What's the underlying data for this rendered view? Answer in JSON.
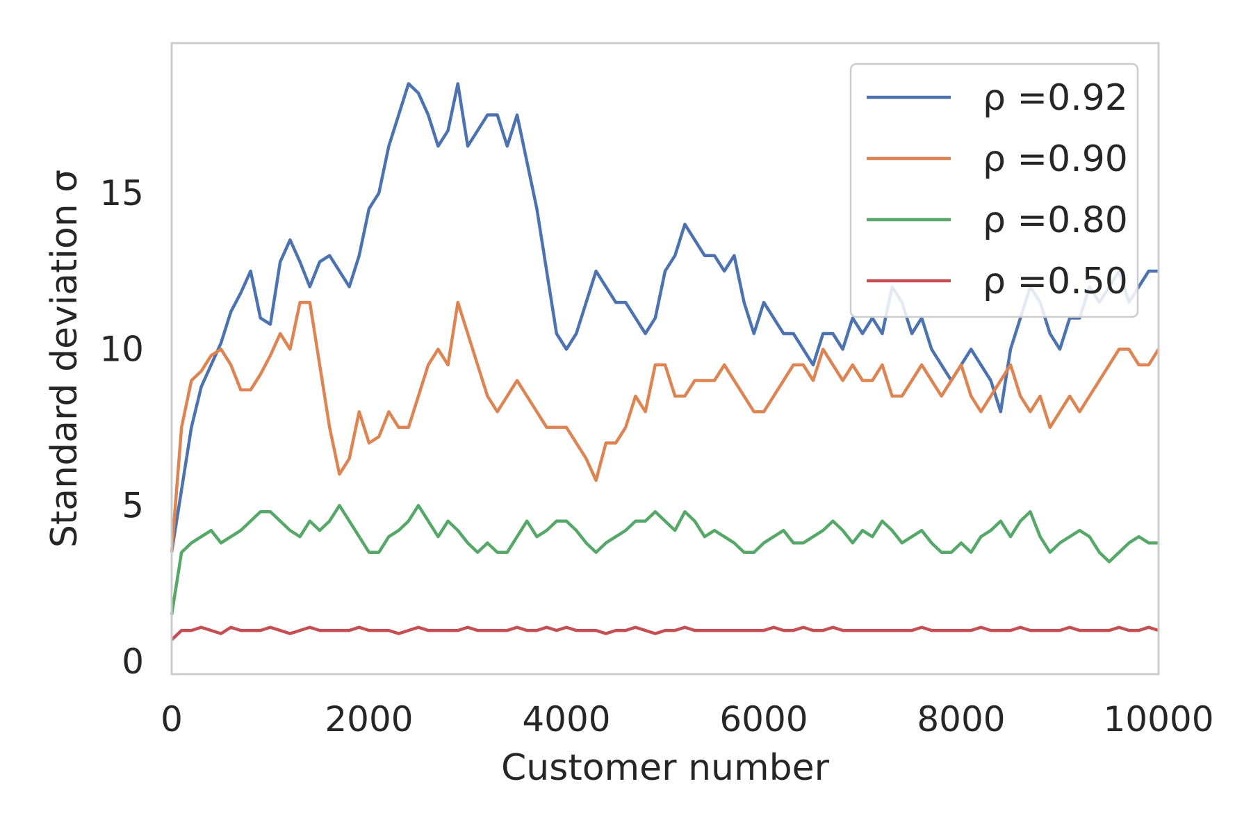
{
  "chart_data": {
    "type": "line",
    "title": "",
    "xlabel": "Customer number",
    "ylabel": "Standard deviation σ",
    "xlim": [
      0,
      10000
    ],
    "ylim": [
      -0.4,
      19.8
    ],
    "xticks": [
      0,
      2000,
      4000,
      6000,
      8000,
      10000
    ],
    "yticks": [
      0,
      5,
      10,
      15
    ],
    "grid": false,
    "legend_position": "top-right",
    "series": [
      {
        "name": "ρ =0.92",
        "color": "#4c72b0",
        "x": [
          0,
          100,
          200,
          300,
          400,
          500,
          600,
          700,
          800,
          900,
          1000,
          1100,
          1200,
          1300,
          1400,
          1500,
          1600,
          1700,
          1800,
          1900,
          2000,
          2100,
          2200,
          2300,
          2400,
          2500,
          2600,
          2700,
          2800,
          2900,
          3000,
          3100,
          3200,
          3300,
          3400,
          3500,
          3600,
          3700,
          3800,
          3900,
          4000,
          4100,
          4200,
          4300,
          4400,
          4500,
          4600,
          4700,
          4800,
          4900,
          5000,
          5100,
          5200,
          5300,
          5400,
          5500,
          5600,
          5700,
          5800,
          5900,
          6000,
          6100,
          6200,
          6300,
          6400,
          6500,
          6600,
          6700,
          6800,
          6900,
          7000,
          7100,
          7200,
          7300,
          7400,
          7500,
          7600,
          7700,
          7800,
          7900,
          8000,
          8100,
          8200,
          8300,
          8400,
          8500,
          8600,
          8700,
          8800,
          8900,
          9000,
          9100,
          9200,
          9300,
          9400,
          9500,
          9600,
          9700,
          9800,
          9900,
          10000
        ],
        "y": [
          3.5,
          5.5,
          7.5,
          8.8,
          9.5,
          10.2,
          11.2,
          11.8,
          12.5,
          11.0,
          10.8,
          12.8,
          13.5,
          12.8,
          12.0,
          12.8,
          13.0,
          12.5,
          12.0,
          13.0,
          14.5,
          15.0,
          16.5,
          17.5,
          18.5,
          18.2,
          17.5,
          16.5,
          17.0,
          18.5,
          16.5,
          17.0,
          17.5,
          17.5,
          16.5,
          17.5,
          16.0,
          14.5,
          12.5,
          10.5,
          10.0,
          10.5,
          11.5,
          12.5,
          12.0,
          11.5,
          11.5,
          11.0,
          10.5,
          11.0,
          12.5,
          13.0,
          14.0,
          13.5,
          13.0,
          13.0,
          12.5,
          13.0,
          11.5,
          10.5,
          11.5,
          11.0,
          10.5,
          10.5,
          10.0,
          9.5,
          10.5,
          10.5,
          10.0,
          11.0,
          10.5,
          11.0,
          10.5,
          12.0,
          11.5,
          10.5,
          11.0,
          10.0,
          9.5,
          9.0,
          9.5,
          10.0,
          9.5,
          9.0,
          8.0,
          10.0,
          11.0,
          12.0,
          11.5,
          10.5,
          10.0,
          11.0,
          11.0,
          12.0,
          11.5,
          12.0,
          12.5,
          11.5,
          12.0,
          12.5,
          12.5
        ]
      },
      {
        "name": "ρ =0.90",
        "color": "#dd8452",
        "x": [
          0,
          100,
          200,
          300,
          400,
          500,
          600,
          700,
          800,
          900,
          1000,
          1100,
          1200,
          1300,
          1400,
          1500,
          1600,
          1700,
          1800,
          1900,
          2000,
          2100,
          2200,
          2300,
          2400,
          2500,
          2600,
          2700,
          2800,
          2900,
          3000,
          3100,
          3200,
          3300,
          3400,
          3500,
          3600,
          3700,
          3800,
          3900,
          4000,
          4100,
          4200,
          4300,
          4400,
          4500,
          4600,
          4700,
          4800,
          4900,
          5000,
          5100,
          5200,
          5300,
          5400,
          5500,
          5600,
          5700,
          5800,
          5900,
          6000,
          6100,
          6200,
          6300,
          6400,
          6500,
          6600,
          6700,
          6800,
          6900,
          7000,
          7100,
          7200,
          7300,
          7400,
          7500,
          7600,
          7700,
          7800,
          7900,
          8000,
          8100,
          8200,
          8300,
          8400,
          8500,
          8600,
          8700,
          8800,
          8900,
          9000,
          9100,
          9200,
          9300,
          9400,
          9500,
          9600,
          9700,
          9800,
          9900,
          10000
        ],
        "y": [
          3.5,
          7.5,
          9.0,
          9.3,
          9.8,
          10.0,
          9.5,
          8.7,
          8.7,
          9.2,
          9.8,
          10.5,
          10.0,
          11.5,
          11.5,
          9.5,
          7.5,
          6.0,
          6.5,
          8.0,
          7.0,
          7.2,
          8.0,
          7.5,
          7.5,
          8.5,
          9.5,
          10.0,
          9.5,
          11.5,
          10.5,
          9.5,
          8.5,
          8.0,
          8.5,
          9.0,
          8.5,
          8.0,
          7.5,
          7.5,
          7.5,
          7.0,
          6.5,
          5.8,
          7.0,
          7.0,
          7.5,
          8.5,
          8.0,
          9.5,
          9.5,
          8.5,
          8.5,
          9.0,
          9.0,
          9.0,
          9.5,
          9.0,
          8.5,
          8.0,
          8.0,
          8.5,
          9.0,
          9.5,
          9.5,
          9.0,
          10.0,
          9.5,
          9.0,
          9.5,
          9.0,
          9.0,
          9.5,
          8.5,
          8.5,
          9.0,
          9.5,
          9.0,
          8.5,
          9.0,
          9.5,
          8.5,
          8.0,
          8.5,
          9.0,
          9.5,
          8.5,
          8.0,
          8.5,
          7.5,
          8.0,
          8.5,
          8.0,
          8.5,
          9.0,
          9.5,
          10.0,
          10.0,
          9.5,
          9.5,
          10.0
        ]
      },
      {
        "name": "ρ =0.80",
        "color": "#55a868",
        "x": [
          0,
          100,
          200,
          300,
          400,
          500,
          600,
          700,
          800,
          900,
          1000,
          1100,
          1200,
          1300,
          1400,
          1500,
          1600,
          1700,
          1800,
          1900,
          2000,
          2100,
          2200,
          2300,
          2400,
          2500,
          2600,
          2700,
          2800,
          2900,
          3000,
          3100,
          3200,
          3300,
          3400,
          3500,
          3600,
          3700,
          3800,
          3900,
          4000,
          4100,
          4200,
          4300,
          4400,
          4500,
          4600,
          4700,
          4800,
          4900,
          5000,
          5100,
          5200,
          5300,
          5400,
          5500,
          5600,
          5700,
          5800,
          5900,
          6000,
          6100,
          6200,
          6300,
          6400,
          6500,
          6600,
          6700,
          6800,
          6900,
          7000,
          7100,
          7200,
          7300,
          7400,
          7500,
          7600,
          7700,
          7800,
          7900,
          8000,
          8100,
          8200,
          8300,
          8400,
          8500,
          8600,
          8700,
          8800,
          8900,
          9000,
          9100,
          9200,
          9300,
          9400,
          9500,
          9600,
          9700,
          9800,
          9900,
          10000
        ],
        "y": [
          1.5,
          3.5,
          3.8,
          4.0,
          4.2,
          3.8,
          4.0,
          4.2,
          4.5,
          4.8,
          4.8,
          4.5,
          4.2,
          4.0,
          4.5,
          4.2,
          4.5,
          5.0,
          4.5,
          4.0,
          3.5,
          3.5,
          4.0,
          4.2,
          4.5,
          5.0,
          4.5,
          4.0,
          4.5,
          4.2,
          3.8,
          3.5,
          3.8,
          3.5,
          3.5,
          4.0,
          4.5,
          4.0,
          4.2,
          4.5,
          4.5,
          4.2,
          3.8,
          3.5,
          3.8,
          4.0,
          4.2,
          4.5,
          4.5,
          4.8,
          4.5,
          4.2,
          4.8,
          4.5,
          4.0,
          4.2,
          4.0,
          3.8,
          3.5,
          3.5,
          3.8,
          4.0,
          4.2,
          3.8,
          3.8,
          4.0,
          4.2,
          4.5,
          4.2,
          3.8,
          4.2,
          4.0,
          4.5,
          4.2,
          3.8,
          4.0,
          4.2,
          3.8,
          3.5,
          3.5,
          3.8,
          3.5,
          4.0,
          4.2,
          4.5,
          4.0,
          4.5,
          4.8,
          4.0,
          3.5,
          3.8,
          4.0,
          4.2,
          4.0,
          3.5,
          3.2,
          3.5,
          3.8,
          4.0,
          3.8,
          3.8
        ]
      },
      {
        "name": "ρ =0.50",
        "color": "#c44e52",
        "x": [
          0,
          100,
          200,
          300,
          400,
          500,
          600,
          700,
          800,
          900,
          1000,
          1100,
          1200,
          1300,
          1400,
          1500,
          1600,
          1700,
          1800,
          1900,
          2000,
          2100,
          2200,
          2300,
          2400,
          2500,
          2600,
          2700,
          2800,
          2900,
          3000,
          3100,
          3200,
          3300,
          3400,
          3500,
          3600,
          3700,
          3800,
          3900,
          4000,
          4100,
          4200,
          4300,
          4400,
          4500,
          4600,
          4700,
          4800,
          4900,
          5000,
          5100,
          5200,
          5300,
          5400,
          5500,
          5600,
          5700,
          5800,
          5900,
          6000,
          6100,
          6200,
          6300,
          6400,
          6500,
          6600,
          6700,
          6800,
          6900,
          7000,
          7100,
          7200,
          7300,
          7400,
          7500,
          7600,
          7700,
          7800,
          7900,
          8000,
          8100,
          8200,
          8300,
          8400,
          8500,
          8600,
          8700,
          8800,
          8900,
          9000,
          9100,
          9200,
          9300,
          9400,
          9500,
          9600,
          9700,
          9800,
          9900,
          10000
        ],
        "y": [
          0.7,
          1.0,
          1.0,
          1.1,
          1.0,
          0.9,
          1.1,
          1.0,
          1.0,
          1.0,
          1.1,
          1.0,
          0.9,
          1.0,
          1.1,
          1.0,
          1.0,
          1.0,
          1.0,
          1.1,
          1.0,
          1.0,
          1.0,
          0.9,
          1.0,
          1.1,
          1.0,
          1.0,
          1.0,
          1.0,
          1.1,
          1.0,
          1.0,
          1.0,
          1.0,
          1.1,
          1.0,
          1.0,
          1.1,
          1.0,
          1.1,
          1.0,
          1.0,
          1.0,
          0.9,
          1.0,
          1.0,
          1.1,
          1.0,
          0.9,
          1.0,
          1.0,
          1.1,
          1.0,
          1.0,
          1.0,
          1.0,
          1.0,
          1.0,
          1.0,
          1.0,
          1.1,
          1.0,
          1.0,
          1.1,
          1.0,
          1.0,
          1.1,
          1.0,
          1.0,
          1.0,
          1.0,
          1.0,
          1.0,
          1.0,
          1.0,
          1.1,
          1.0,
          1.0,
          1.0,
          1.0,
          1.0,
          1.1,
          1.0,
          1.0,
          1.0,
          1.1,
          1.0,
          1.0,
          1.0,
          1.0,
          1.1,
          1.0,
          1.0,
          1.0,
          1.0,
          1.1,
          1.0,
          1.0,
          1.1,
          1.0
        ]
      }
    ]
  }
}
